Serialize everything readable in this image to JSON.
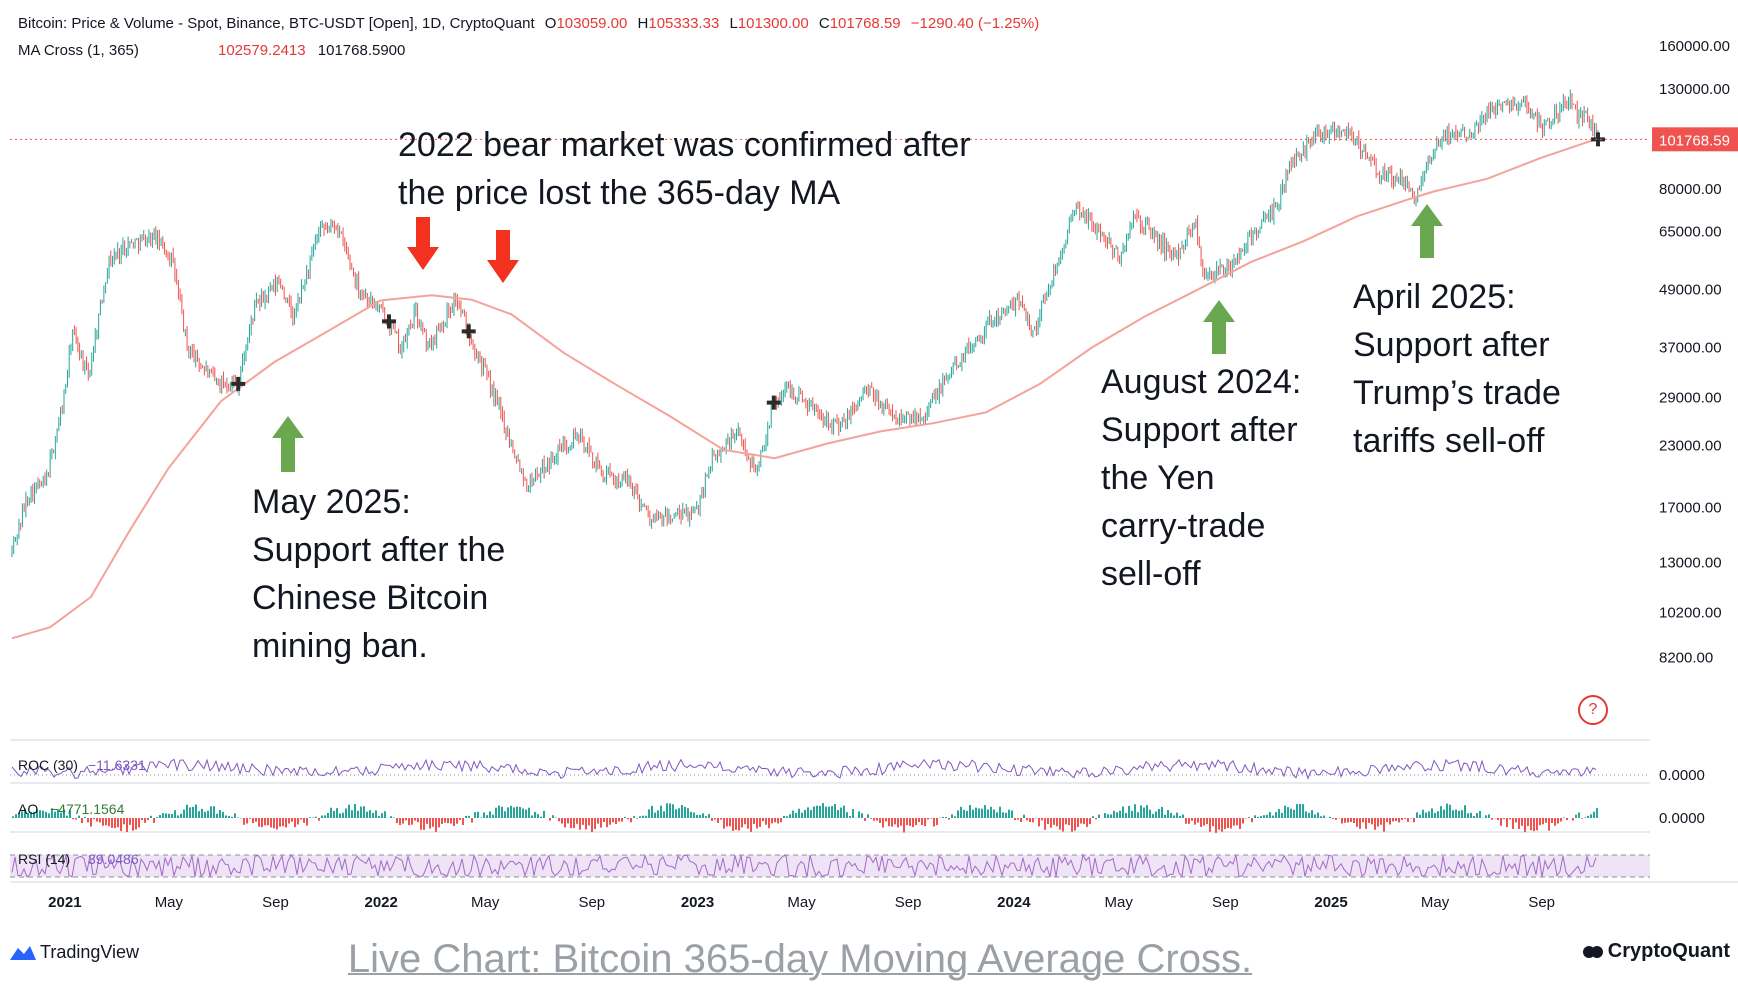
{
  "header": {
    "line1_parts": [
      "Bitcoin: Price & Volume - Spot, Binance, BTC-USDT [Open], 1D, CryptoQuant",
      "O",
      "103059.00",
      "H",
      "105333.33",
      "L",
      "101300.00",
      "C",
      "101768.59",
      "−1290.40 (−1.25%)"
    ],
    "line2_label": "MA Cross (1, 365)",
    "line2_val1": "102579.2413",
    "line2_val2": "101768.5900"
  },
  "last_price_label": "101768.59",
  "colors": {
    "price_up": "#26a69a",
    "price_down": "#ef5350",
    "ma": "#f4a39b",
    "arrow_red": "#f2311f",
    "arrow_green": "#6aa84f",
    "roc": "#7e57c2",
    "rsi": "#a36ac7",
    "rsi_band": "#efe4f5"
  },
  "chart_data": {
    "type": "line",
    "title": "Bitcoin: Price & Volume - Spot, Binance, BTC-USDT [Open], 1D, CryptoQuant",
    "y_scale": "log",
    "ylim": [
      7000,
      180000
    ],
    "y_ticks": [
      "160000.00",
      "130000.00",
      "101768.59",
      "80000.00",
      "65000.00",
      "49000.00",
      "37000.00",
      "29000.00",
      "23000.00",
      "17000.00",
      "13000.00",
      "10200.00",
      "8200.00"
    ],
    "y_tick_values": [
      160000,
      130000,
      101768.59,
      80000,
      65000,
      49000,
      37000,
      29000,
      23000,
      17000,
      13000,
      10200,
      8200
    ],
    "x_ticks": [
      {
        "label": "2021",
        "date": "2021-01-01",
        "bold": true
      },
      {
        "label": "May",
        "date": "2021-05-01",
        "bold": false
      },
      {
        "label": "Sep",
        "date": "2021-09-01",
        "bold": false
      },
      {
        "label": "2022",
        "date": "2022-01-01",
        "bold": true
      },
      {
        "label": "May",
        "date": "2022-05-01",
        "bold": false
      },
      {
        "label": "Sep",
        "date": "2022-09-01",
        "bold": false
      },
      {
        "label": "2023",
        "date": "2023-01-01",
        "bold": true
      },
      {
        "label": "May",
        "date": "2023-05-01",
        "bold": false
      },
      {
        "label": "Sep",
        "date": "2023-09-01",
        "bold": false
      },
      {
        "label": "2024",
        "date": "2024-01-01",
        "bold": true
      },
      {
        "label": "May",
        "date": "2024-05-01",
        "bold": false
      },
      {
        "label": "Sep",
        "date": "2024-09-01",
        "bold": false
      },
      {
        "label": "2025",
        "date": "2025-01-01",
        "bold": true
      },
      {
        "label": "May",
        "date": "2025-05-01",
        "bold": false
      },
      {
        "label": "Sep",
        "date": "2025-09-01",
        "bold": false
      }
    ],
    "series": [
      {
        "name": "Price",
        "x": [
          "2020-11-01",
          "2020-11-20",
          "2020-12-10",
          "2020-12-31",
          "2021-01-10",
          "2021-01-28",
          "2021-02-20",
          "2021-03-13",
          "2021-04-14",
          "2021-05-05",
          "2021-05-22",
          "2021-06-22",
          "2021-07-20",
          "2021-08-08",
          "2021-09-06",
          "2021-09-22",
          "2021-10-20",
          "2021-11-10",
          "2021-12-06",
          "2022-01-10",
          "2022-01-24",
          "2022-02-10",
          "2022-02-24",
          "2022-03-28",
          "2022-04-12",
          "2022-05-12",
          "2022-06-18",
          "2022-08-14",
          "2022-09-15",
          "2022-10-15",
          "2022-11-09",
          "2022-12-30",
          "2023-01-15",
          "2023-02-15",
          "2023-03-10",
          "2023-03-30",
          "2023-04-15",
          "2023-06-15",
          "2023-07-15",
          "2023-08-20",
          "2023-09-20",
          "2023-10-25",
          "2023-12-05",
          "2024-01-10",
          "2024-01-23",
          "2024-02-28",
          "2024-03-14",
          "2024-04-15",
          "2024-05-01",
          "2024-05-20",
          "2024-07-05",
          "2024-07-29",
          "2024-08-05",
          "2024-09-06",
          "2024-09-30",
          "2024-10-29",
          "2024-11-12",
          "2024-12-17",
          "2025-01-20",
          "2025-02-25",
          "2025-03-20",
          "2025-04-08",
          "2025-05-10",
          "2025-06-10",
          "2025-07-14",
          "2025-08-14",
          "2025-09-01",
          "2025-09-20",
          "2025-10-06",
          "2025-10-12",
          "2025-10-25",
          "2025-11-05"
        ],
        "values": [
          13800,
          18200,
          19200,
          29000,
          40000,
          32000,
          56000,
          61000,
          63500,
          57000,
          37000,
          31500,
          31000,
          45000,
          51000,
          42500,
          64000,
          67500,
          49500,
          42000,
          36500,
          44000,
          37000,
          47000,
          40000,
          29000,
          19000,
          24400,
          19800,
          19200,
          16000,
          16500,
          21000,
          24500,
          20200,
          28300,
          30400,
          25000,
          30200,
          26000,
          26900,
          34000,
          42000,
          46500,
          39500,
          62000,
          73000,
          63000,
          57000,
          70000,
          57000,
          69000,
          53000,
          54000,
          63500,
          72000,
          88000,
          106000,
          107000,
          86000,
          84000,
          77000,
          104000,
          106000,
          122000,
          121000,
          108000,
          117000,
          125000,
          112000,
          113000,
          101768
        ]
      },
      {
        "name": "MA Cross (1, 365)",
        "x": [
          "2020-11-01",
          "2020-12-15",
          "2021-01-31",
          "2021-03-15",
          "2021-04-30",
          "2021-06-30",
          "2021-08-31",
          "2021-10-31",
          "2021-12-31",
          "2022-02-28",
          "2022-04-15",
          "2022-05-31",
          "2022-07-31",
          "2022-09-30",
          "2022-11-30",
          "2023-01-31",
          "2023-03-31",
          "2023-05-31",
          "2023-07-31",
          "2023-09-30",
          "2023-11-30",
          "2024-01-31",
          "2024-03-31",
          "2024-05-31",
          "2024-07-31",
          "2024-09-30",
          "2024-11-30",
          "2025-01-31",
          "2025-03-31",
          "2025-04-30",
          "2025-06-30",
          "2025-08-31",
          "2025-10-31",
          "2025-11-05"
        ],
        "values": [
          9000,
          9500,
          11000,
          15000,
          20500,
          28500,
          34500,
          40000,
          46500,
          47700,
          46700,
          43500,
          36000,
          30800,
          26500,
          22500,
          21600,
          23200,
          24600,
          25600,
          27000,
          31000,
          37000,
          43000,
          49000,
          56000,
          62000,
          70000,
          76000,
          79000,
          84000,
          93000,
          101500,
          102579
        ]
      }
    ],
    "annotations": [
      {
        "lines": [
          "2022 bear market was confirmed after",
          "the price lost the 365-day MA"
        ],
        "arrows": "red-down"
      },
      {
        "lines": [
          "May 2025:",
          "Support after the",
          "Chinese Bitcoin",
          "mining ban."
        ],
        "arrow": "green-up"
      },
      {
        "lines": [
          "August 2024:",
          "Support after",
          "the Yen",
          "carry-trade",
          "sell-off"
        ],
        "arrow": "green-up"
      },
      {
        "lines": [
          "April 2025:",
          "Support after",
          "Trump’s trade",
          "tariffs sell-off"
        ],
        "arrow": "green-up"
      }
    ],
    "cross_markers": [
      "2021-07-20",
      "2022-01-10",
      "2022-04-12",
      "2023-03-30",
      "2025-11-05"
    ],
    "sub_panes": [
      {
        "label": "ROC (30)",
        "value": "−11.6331",
        "zero_label": "0.0000"
      },
      {
        "label": "AO",
        "value": "−4771.1564",
        "zero_label": "0.0000"
      },
      {
        "label": "RSI (14)",
        "value": "39.0486"
      }
    ]
  },
  "footer": {
    "tradingview": "TradingView",
    "caption": "Live Chart: Bitcoin 365-day Moving Average Cross.",
    "cryptoquant": "CryptoQuant",
    "help": "?"
  }
}
